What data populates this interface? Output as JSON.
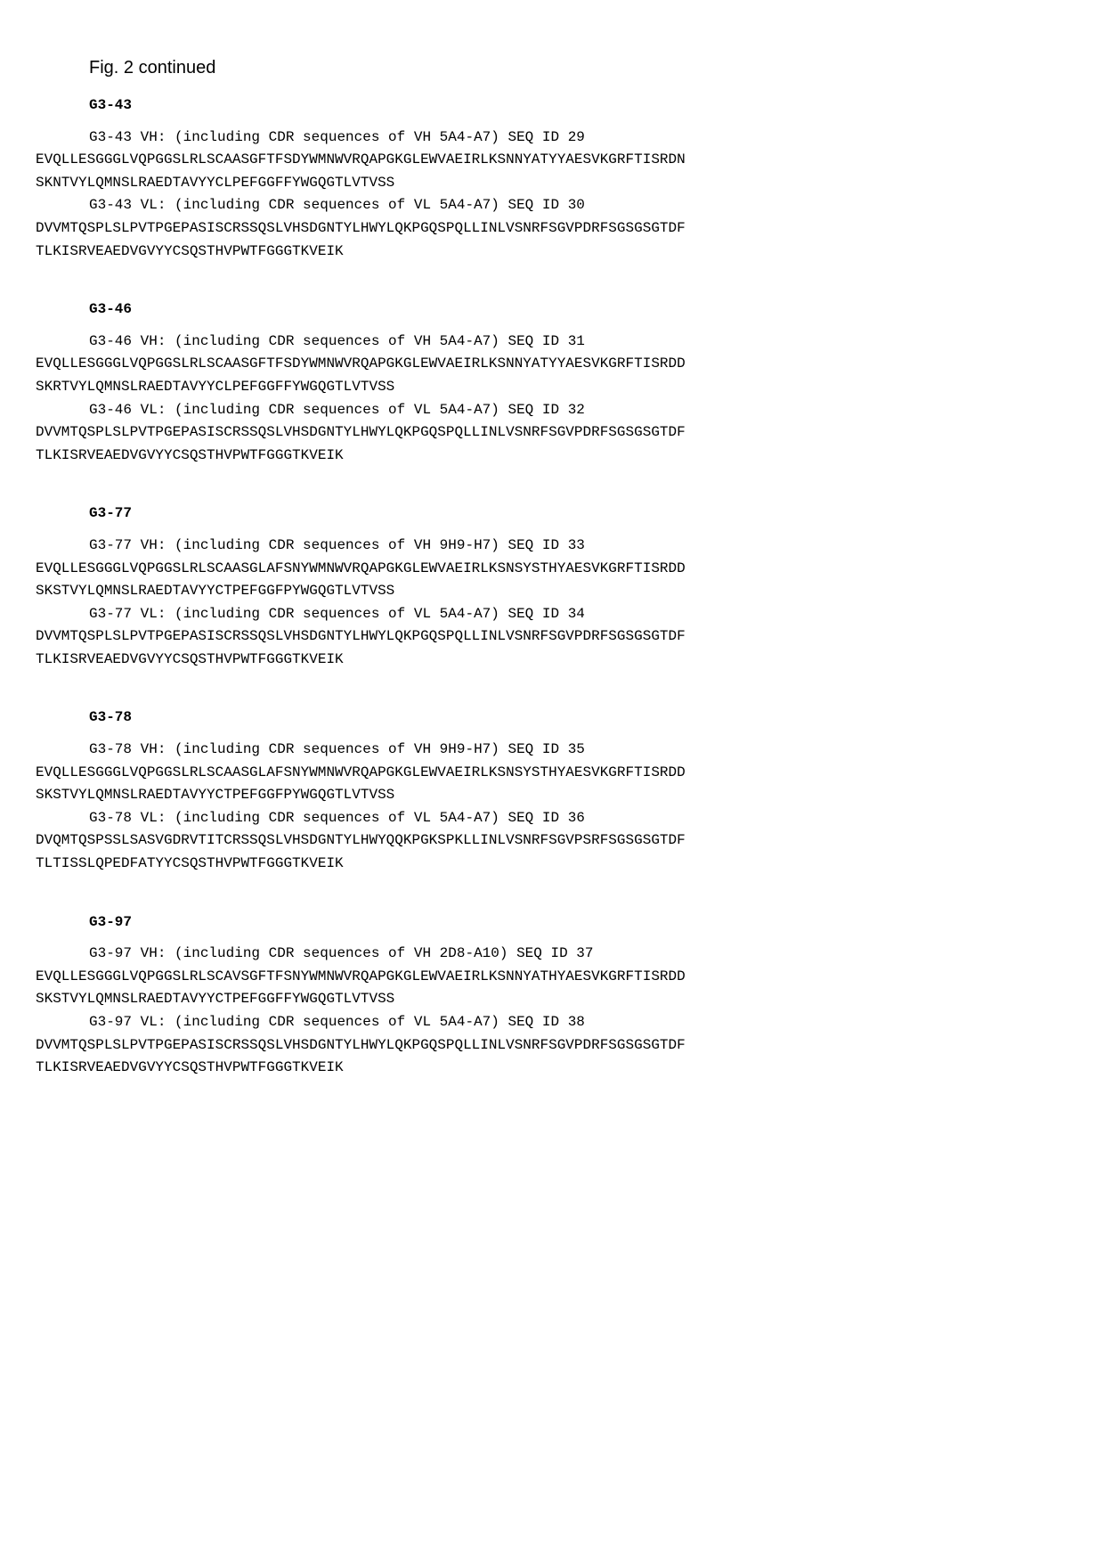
{
  "figure_title": "Fig. 2 continued",
  "groups": [
    {
      "name": "G3-43",
      "entries": [
        {
          "header": "G3-43 VH: (including CDR sequences of VH 5A4-A7) SEQ ID 29",
          "seq_lines": [
            "EVQLLESGGGLVQPGGSLRLSCAASGFTFSDYWMNWVRQAPGKGLEWVAEIRLKSNNYATYYAESVKGRFTISRDN",
            "SKNTVYLQMNSLRAEDTAVYYCLPEFGGFFYWGQGTLVTVSS"
          ]
        },
        {
          "header": "G3-43 VL: (including CDR sequences of VL 5A4-A7) SEQ ID 30",
          "seq_lines": [
            "DVVMTQSPLSLPVTPGEPASISCRSSQSLVHSDGNTYLHWYLQKPGQSPQLLINLVSNRFSGVPDRFSGSGSGTDF",
            "TLKISRVEAEDVGVYYCSQSTHVPWTFGGGTKVEIK"
          ]
        }
      ]
    },
    {
      "name": "G3-46",
      "entries": [
        {
          "header": "G3-46 VH: (including CDR sequences of VH 5A4-A7) SEQ ID 31",
          "seq_lines": [
            "EVQLLESGGGLVQPGGSLRLSCAASGFTFSDYWMNWVRQAPGKGLEWVAEIRLKSNNYATYYAESVKGRFTISRDD",
            "SKRTVYLQMNSLRAEDTAVYYCLPEFGGFFYWGQGTLVTVSS"
          ]
        },
        {
          "header": "G3-46 VL: (including CDR sequences of VL 5A4-A7) SEQ ID 32",
          "seq_lines": [
            "DVVMTQSPLSLPVTPGEPASISCRSSQSLVHSDGNTYLHWYLQKPGQSPQLLINLVSNRFSGVPDRFSGSGSGTDF",
            "TLKISRVEAEDVGVYYCSQSTHVPWTFGGGTKVEIK"
          ]
        }
      ]
    },
    {
      "name": "G3-77",
      "entries": [
        {
          "header": "G3-77 VH: (including CDR sequences of VH 9H9-H7) SEQ ID 33",
          "seq_lines": [
            "EVQLLESGGGLVQPGGSLRLSCAASGLAFSNYWMNWVRQAPGKGLEWVAEIRLKSNSYSTHYAESVKGRFTISRDD",
            "SKSTVYLQMNSLRAEDTAVYYCTPEFGGFPYWGQGTLVTVSS"
          ]
        },
        {
          "header": "G3-77 VL: (including CDR sequences of VL 5A4-A7) SEQ ID 34",
          "seq_lines": [
            "DVVMTQSPLSLPVTPGEPASISCRSSQSLVHSDGNTYLHWYLQKPGQSPQLLINLVSNRFSGVPDRFSGSGSGTDF",
            "TLKISRVEAEDVGVYYCSQSTHVPWTFGGGTKVEIK"
          ]
        }
      ]
    },
    {
      "name": "G3-78",
      "entries": [
        {
          "header": "G3-78 VH: (including CDR sequences of VH 9H9-H7) SEQ ID 35",
          "seq_lines": [
            "EVQLLESGGGLVQPGGSLRLSCAASGLAFSNYWMNWVRQAPGKGLEWVAEIRLKSNSYSTHYAESVKGRFTISRDD",
            "SKSTVYLQMNSLRAEDTAVYYCTPEFGGFPYWGQGTLVTVSS"
          ]
        },
        {
          "header": "G3-78 VL: (including CDR sequences of VL 5A4-A7) SEQ ID 36",
          "seq_lines": [
            "DVQMTQSPSSLSASVGDRVTITCRSSQSLVHSDGNTYLHWYQQKPGKSPKLLINLVSNRFSGVPSRFSGSGSGTDF",
            "TLTISSLQPEDFATYYCSQSTHVPWTFGGGTKVEIK"
          ]
        }
      ]
    },
    {
      "name": "G3-97",
      "entries": [
        {
          "header": "G3-97 VH: (including CDR sequences of VH 2D8-A10) SEQ ID 37",
          "seq_lines": [
            "EVQLLESGGGLVQPGGSLRLSCAVSGFTFSNYWMNWVRQAPGKGLEWVAEIRLKSNNYATHYAESVKGRFTISRDD",
            "SKSTVYLQMNSLRAEDTAVYYCTPEFGGFFYWGQGTLVTVSS"
          ]
        },
        {
          "header": "G3-97 VL: (including CDR sequences of VL 5A4-A7) SEQ ID 38",
          "seq_lines": [
            "DVVMTQSPLSLPVTPGEPASISCRSSQSLVHSDGNTYLHWYLQKPGQSPQLLINLVSNRFSGVPDRFSGSGSGTDF",
            "TLKISRVEAEDVGVYYCSQSTHVPWTFGGGTKVEIK"
          ]
        }
      ]
    }
  ]
}
